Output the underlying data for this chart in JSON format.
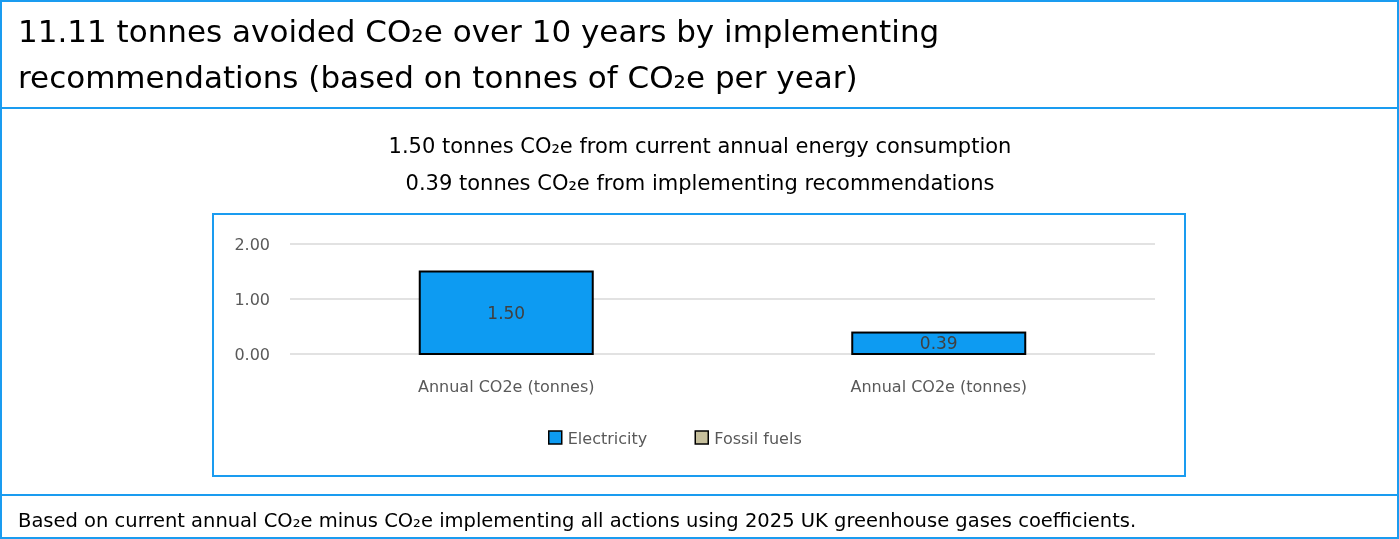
{
  "chart_data": {
    "type": "bar",
    "stacked": true,
    "title": "11.11 tonnes avoided CO₂e over 10 years by implementing recommendations (based on tonnes of CO₂e per year)",
    "subtitle": "1.50 tonnes CO₂e from current annual energy consumption\n0.39 tonnes CO₂e from implementing recommendations",
    "annotations": [
      "Based on current annual CO₂e minus CO₂e implementing all actions using 2025 UK greenhouse gases coefficients."
    ],
    "categories": [
      "Annual CO2e (tonnes)",
      "Annual CO2e (tonnes)"
    ],
    "series": [
      {
        "name": "Electricity",
        "color": "#0d9bf2",
        "values": [
          1.5,
          0.39
        ],
        "value_labels": [
          "1.50",
          "0.39"
        ]
      },
      {
        "name": "Fossil fuels",
        "color": "#c6bf9c",
        "values": [
          0,
          0
        ]
      }
    ],
    "ylim": [
      0,
      2
    ],
    "yticks": [
      {
        "value": 0,
        "label": "0.00"
      },
      {
        "value": 1,
        "label": "1.00"
      },
      {
        "value": 2,
        "label": "2.00"
      }
    ],
    "grid": "y",
    "legend": "bottom"
  }
}
